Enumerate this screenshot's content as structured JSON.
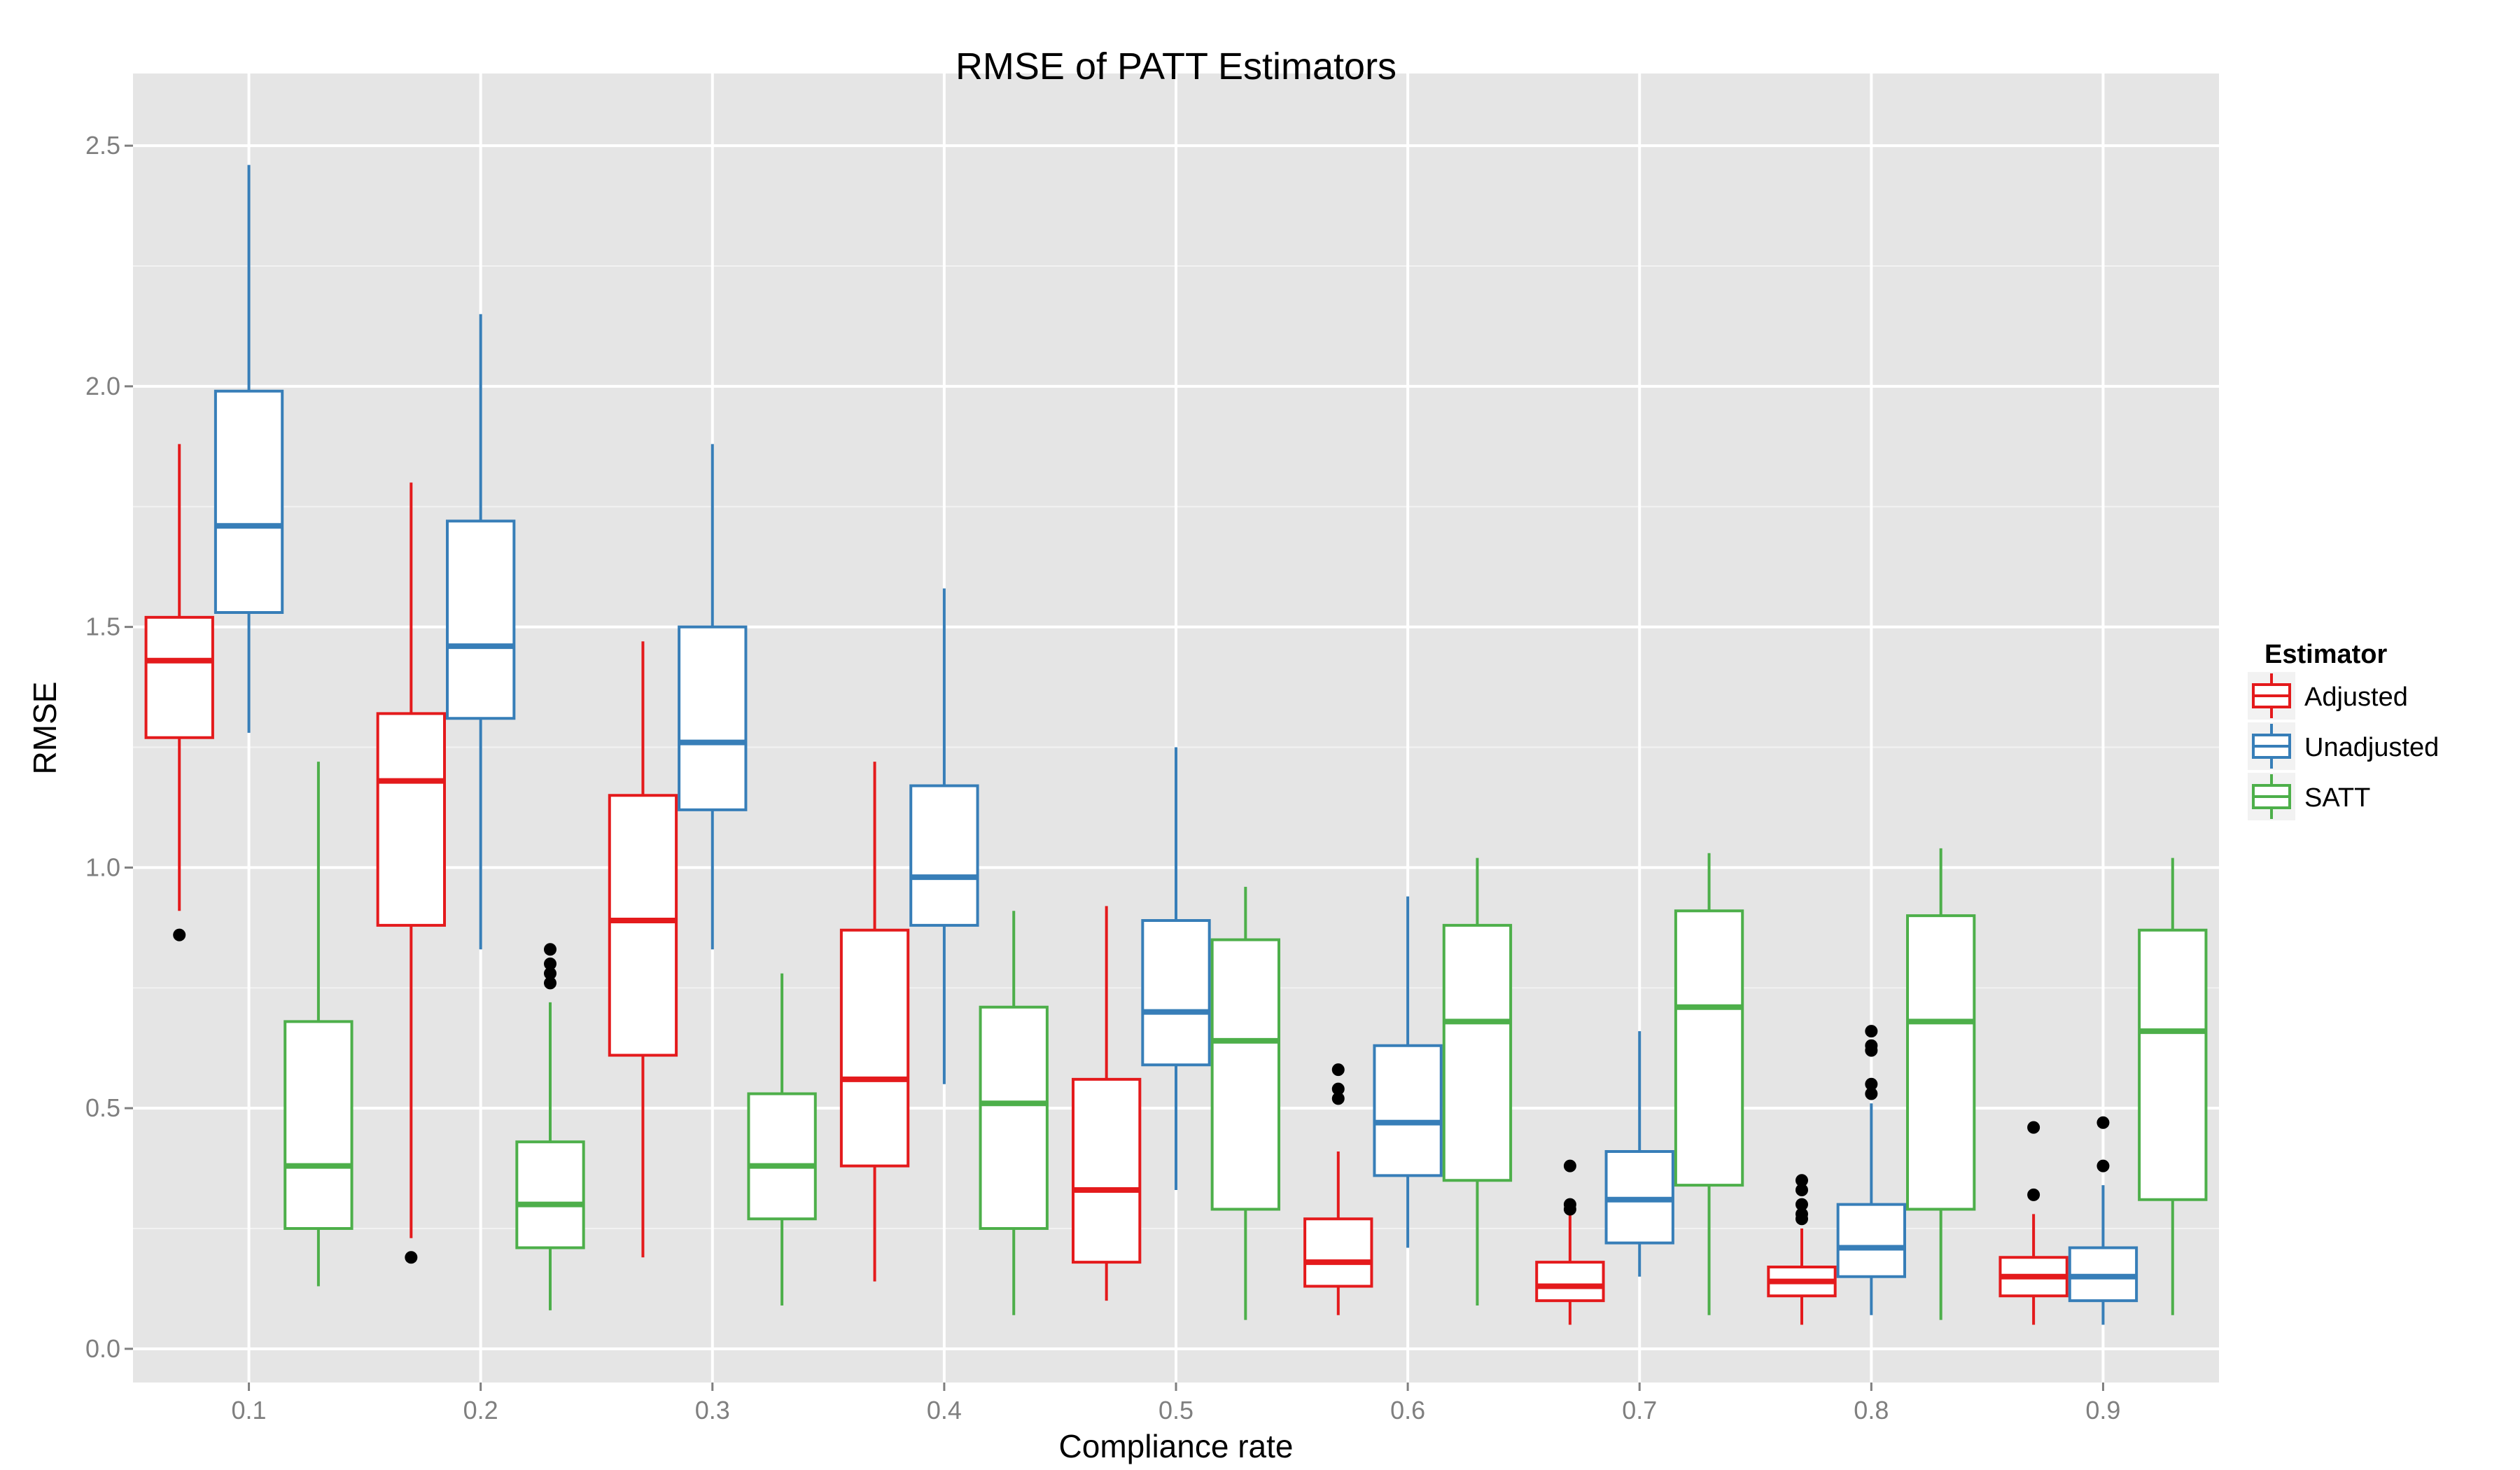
{
  "chart_data": {
    "type": "box",
    "title": "RMSE of PATT Estimators",
    "xlabel": "Compliance rate",
    "ylabel": "RMSE",
    "categories": [
      "0.1",
      "0.2",
      "0.3",
      "0.4",
      "0.5",
      "0.6",
      "0.7",
      "0.8",
      "0.9"
    ],
    "y_ticks": [
      "0.0",
      "0.5",
      "1.0",
      "1.5",
      "2.0",
      "2.5"
    ],
    "ylim": [
      -0.07,
      2.65
    ],
    "grid": true,
    "legend": {
      "title": "Estimator",
      "position": "right"
    },
    "series": [
      {
        "name": "Adjusted",
        "color": "#e41a1c",
        "boxes": [
          {
            "min": 0.91,
            "q1": 1.27,
            "median": 1.43,
            "q3": 1.52,
            "max": 1.88,
            "outliers": [
              0.86
            ]
          },
          {
            "min": 0.23,
            "q1": 0.88,
            "median": 1.18,
            "q3": 1.32,
            "max": 1.8,
            "outliers": [
              0.19
            ]
          },
          {
            "min": 0.19,
            "q1": 0.61,
            "median": 0.89,
            "q3": 1.15,
            "max": 1.47,
            "outliers": []
          },
          {
            "min": 0.14,
            "q1": 0.38,
            "median": 0.56,
            "q3": 0.87,
            "max": 1.22,
            "outliers": []
          },
          {
            "min": 0.1,
            "q1": 0.18,
            "median": 0.33,
            "q3": 0.56,
            "max": 0.92,
            "outliers": []
          },
          {
            "min": 0.07,
            "q1": 0.13,
            "median": 0.18,
            "q3": 0.27,
            "max": 0.41,
            "outliers": [
              0.52,
              0.54,
              0.58
            ]
          },
          {
            "min": 0.05,
            "q1": 0.1,
            "median": 0.13,
            "q3": 0.18,
            "max": 0.28,
            "outliers": [
              0.29,
              0.3,
              0.38
            ]
          },
          {
            "min": 0.05,
            "q1": 0.11,
            "median": 0.14,
            "q3": 0.17,
            "max": 0.25,
            "outliers": [
              0.27,
              0.28,
              0.3,
              0.33,
              0.35
            ]
          },
          {
            "min": 0.05,
            "q1": 0.11,
            "median": 0.15,
            "q3": 0.19,
            "max": 0.28,
            "outliers": [
              0.32,
              0.46
            ]
          }
        ]
      },
      {
        "name": "Unadjusted",
        "color": "#377eb8",
        "boxes": [
          {
            "min": 1.28,
            "q1": 1.53,
            "median": 1.71,
            "q3": 1.99,
            "max": 2.46,
            "outliers": []
          },
          {
            "min": 0.83,
            "q1": 1.31,
            "median": 1.46,
            "q3": 1.72,
            "max": 2.15,
            "outliers": []
          },
          {
            "min": 0.83,
            "q1": 1.12,
            "median": 1.26,
            "q3": 1.5,
            "max": 1.88,
            "outliers": []
          },
          {
            "min": 0.55,
            "q1": 0.88,
            "median": 0.98,
            "q3": 1.17,
            "max": 1.58,
            "outliers": []
          },
          {
            "min": 0.33,
            "q1": 0.59,
            "median": 0.7,
            "q3": 0.89,
            "max": 1.25,
            "outliers": []
          },
          {
            "min": 0.21,
            "q1": 0.36,
            "median": 0.47,
            "q3": 0.63,
            "max": 0.94,
            "outliers": []
          },
          {
            "min": 0.15,
            "q1": 0.22,
            "median": 0.31,
            "q3": 0.41,
            "max": 0.66,
            "outliers": []
          },
          {
            "min": 0.07,
            "q1": 0.15,
            "median": 0.21,
            "q3": 0.3,
            "max": 0.51,
            "outliers": [
              0.53,
              0.55,
              0.62,
              0.63,
              0.66
            ]
          },
          {
            "min": 0.05,
            "q1": 0.1,
            "median": 0.15,
            "q3": 0.21,
            "max": 0.34,
            "outliers": [
              0.38,
              0.47
            ]
          }
        ]
      },
      {
        "name": "SATT",
        "color": "#4daf4a",
        "boxes": [
          {
            "min": 0.13,
            "q1": 0.25,
            "median": 0.38,
            "q3": 0.68,
            "max": 1.22,
            "outliers": []
          },
          {
            "min": 0.08,
            "q1": 0.21,
            "median": 0.3,
            "q3": 0.43,
            "max": 0.72,
            "outliers": [
              0.76,
              0.78,
              0.8,
              0.83
            ]
          },
          {
            "min": 0.09,
            "q1": 0.27,
            "median": 0.38,
            "q3": 0.53,
            "max": 0.78,
            "outliers": []
          },
          {
            "min": 0.07,
            "q1": 0.25,
            "median": 0.51,
            "q3": 0.71,
            "max": 0.91,
            "outliers": []
          },
          {
            "min": 0.06,
            "q1": 0.29,
            "median": 0.64,
            "q3": 0.85,
            "max": 0.96,
            "outliers": []
          },
          {
            "min": 0.09,
            "q1": 0.35,
            "median": 0.68,
            "q3": 0.88,
            "max": 1.02,
            "outliers": []
          },
          {
            "min": 0.07,
            "q1": 0.34,
            "median": 0.71,
            "q3": 0.91,
            "max": 1.03,
            "outliers": []
          },
          {
            "min": 0.06,
            "q1": 0.29,
            "median": 0.68,
            "q3": 0.9,
            "max": 1.04,
            "outliers": []
          },
          {
            "min": 0.07,
            "q1": 0.31,
            "median": 0.66,
            "q3": 0.87,
            "max": 1.02,
            "outliers": []
          }
        ]
      }
    ]
  }
}
